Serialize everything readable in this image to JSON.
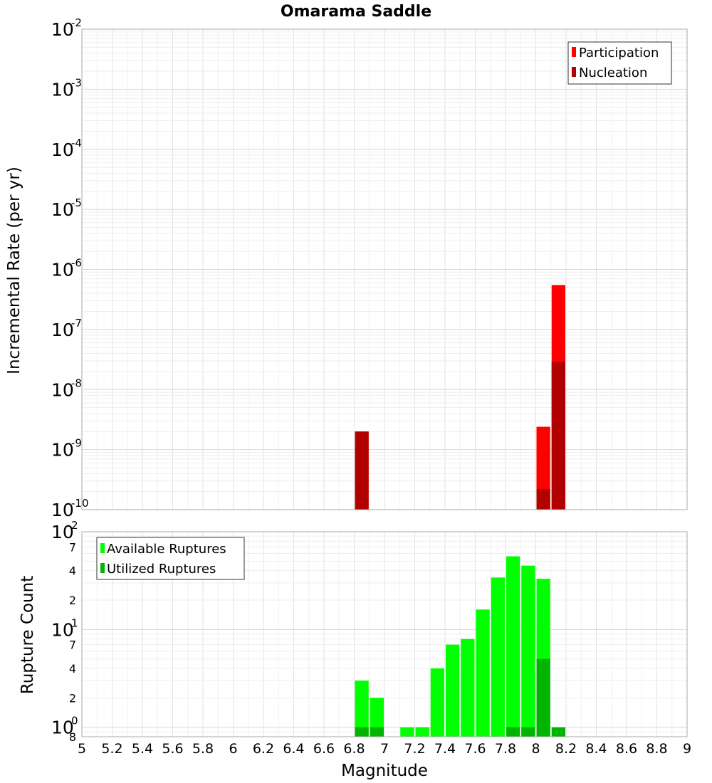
{
  "chart_data": [
    {
      "type": "bar",
      "title": "Omarama Saddle",
      "ylabel": "Incremental Rate (per yr)",
      "xlabel": "",
      "y_scale": "log",
      "ylim": [
        1e-10,
        0.01
      ],
      "xlim": [
        5,
        9
      ],
      "grid": true,
      "legend_position": "top-right",
      "x": [
        6.85,
        8.05,
        8.15
      ],
      "series": [
        {
          "name": "Participation",
          "color": "#ff0000",
          "values": [
            2e-09,
            2.4e-09,
            5.5e-07
          ]
        },
        {
          "name": "Nucleation",
          "color": "#b20000",
          "values": [
            2e-09,
            2.2e-10,
            2.9e-08
          ]
        }
      ],
      "y_tick_labels": [
        {
          "base": "10",
          "exp": "-10"
        },
        {
          "base": "10",
          "exp": "-9"
        },
        {
          "base": "10",
          "exp": "-8"
        },
        {
          "base": "10",
          "exp": "-7"
        },
        {
          "base": "10",
          "exp": "-6"
        },
        {
          "base": "10",
          "exp": "-5"
        },
        {
          "base": "10",
          "exp": "-4"
        },
        {
          "base": "10",
          "exp": "-3"
        },
        {
          "base": "10",
          "exp": "-2"
        }
      ]
    },
    {
      "type": "bar",
      "title": "",
      "ylabel": "Rupture Count",
      "xlabel": "Magnitude",
      "y_scale": "log",
      "ylim": [
        0.8,
        100
      ],
      "xlim": [
        5,
        9
      ],
      "grid": true,
      "legend_position": "top-left",
      "x": [
        6.85,
        6.95,
        7.15,
        7.25,
        7.35,
        7.45,
        7.55,
        7.65,
        7.75,
        7.85,
        7.95,
        8.05,
        8.15
      ],
      "series": [
        {
          "name": "Available Ruptures",
          "color": "#00ff00",
          "values": [
            3,
            2,
            1,
            1,
            4,
            7,
            8,
            16,
            34,
            56,
            45,
            33,
            0
          ]
        },
        {
          "name": "Utilized Ruptures",
          "color": "#00b400",
          "values": [
            1,
            1,
            0,
            0,
            0,
            0,
            0,
            0,
            0,
            1,
            1,
            5,
            1
          ]
        }
      ],
      "x_tick_labels": [
        "5",
        "5.2",
        "5.4",
        "5.6",
        "5.8",
        "6",
        "6.2",
        "6.4",
        "6.6",
        "6.8",
        "7",
        "7.2",
        "7.4",
        "7.6",
        "7.8",
        "8",
        "8.2",
        "8.4",
        "8.6",
        "8.8",
        "9"
      ],
      "y_major_labels": [
        {
          "base": "10",
          "exp": "0"
        },
        {
          "base": "10",
          "exp": "1"
        },
        {
          "base": "10",
          "exp": "2"
        }
      ],
      "y_minor_labels": [
        {
          "value": 2,
          "label": "2"
        },
        {
          "value": 4,
          "label": "4"
        },
        {
          "value": 7,
          "label": "7"
        },
        {
          "value": 20,
          "label": "2"
        },
        {
          "value": 40,
          "label": "4"
        },
        {
          "value": 70,
          "label": "7"
        },
        {
          "value": 0.8,
          "label": "8"
        }
      ]
    }
  ]
}
